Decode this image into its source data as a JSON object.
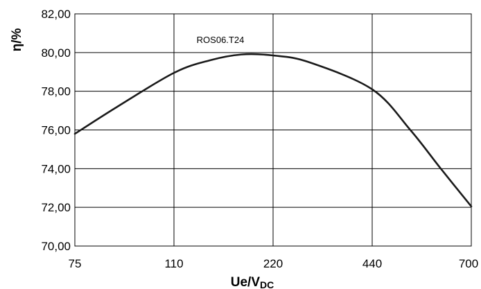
{
  "chart_data": {
    "type": "line",
    "title": "",
    "annotation": "ROS06.T24",
    "xlabel": {
      "main": "Ue/V",
      "sub": "DC"
    },
    "ylabel": "η/%",
    "x_ticks": [
      "75",
      "110",
      "220",
      "440",
      "700"
    ],
    "y_ticks": [
      "70,00",
      "72,00",
      "74,00",
      "76,00",
      "78,00",
      "80,00",
      "82,00"
    ],
    "ylim": [
      70,
      82
    ],
    "x_scale": "categorical-equal-spacing",
    "grid": true,
    "legend": "none",
    "line_color": "#1a1a1a",
    "series": [
      {
        "name": "ROS06.T24",
        "x": [
          75,
          90,
          110,
          150,
          185,
          220,
          300,
          440,
          540,
          620,
          700
        ],
        "y": [
          75.8,
          77.2,
          78.95,
          79.6,
          79.9,
          79.85,
          79.5,
          78.1,
          76.0,
          74.0,
          72.05
        ]
      }
    ]
  }
}
